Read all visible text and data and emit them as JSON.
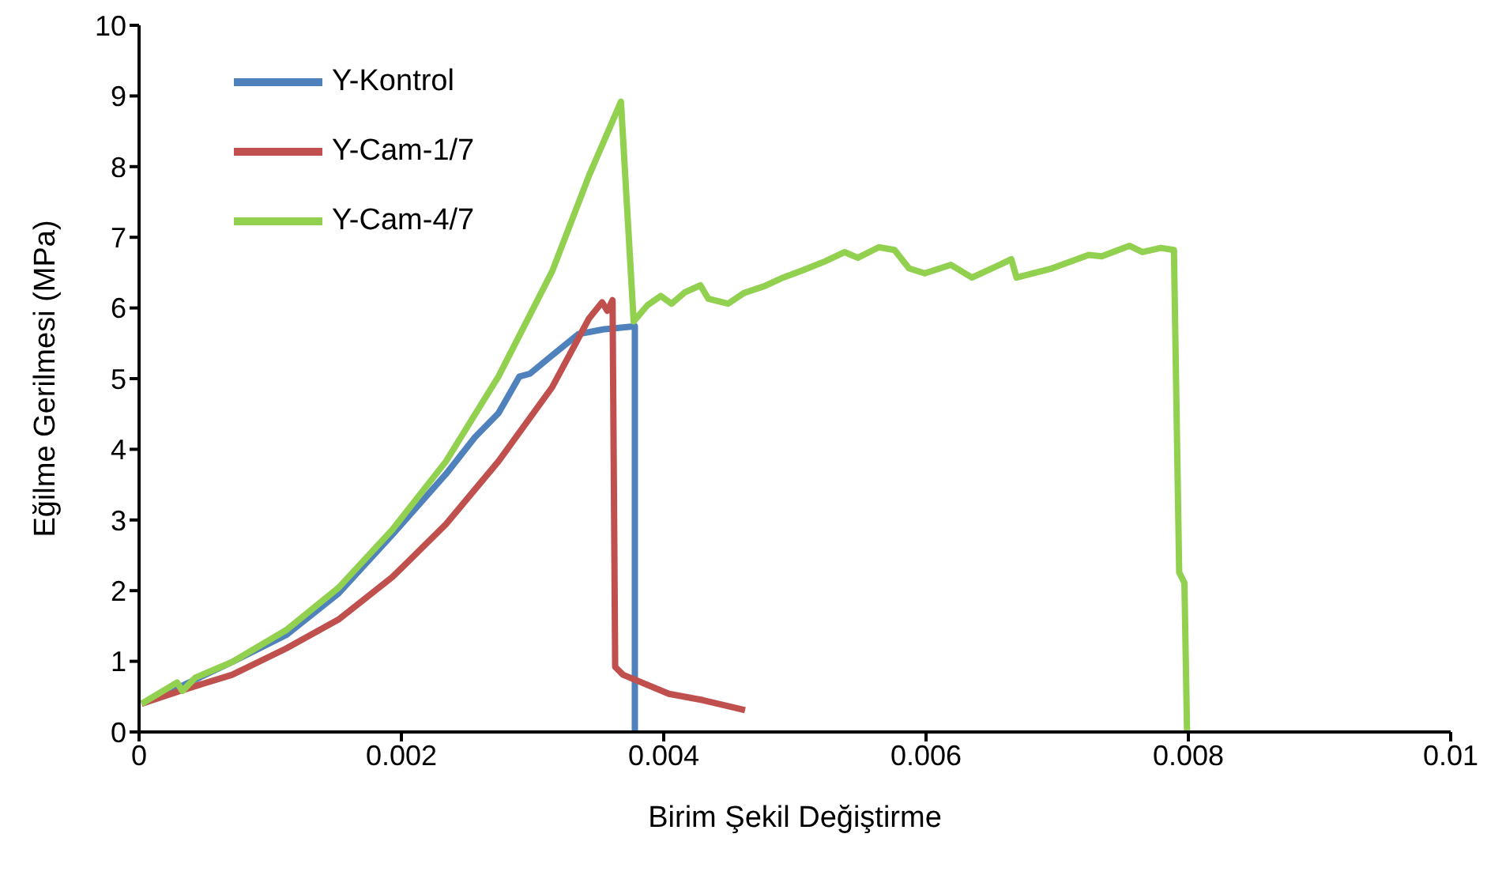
{
  "chart_data": {
    "type": "line",
    "xlabel": "Birim Şekil Değiştirme",
    "ylabel": "Eğilme Gerilmesi (MPa)",
    "xlim": [
      0,
      0.01
    ],
    "xticks": [
      0,
      0.002,
      0.004,
      0.006,
      0.008,
      0.01
    ],
    "ylim": [
      0,
      10
    ],
    "yticks": [
      0,
      1,
      2,
      3,
      4,
      5,
      6,
      7,
      8,
      9,
      10
    ],
    "grid": false,
    "legend": "top left",
    "marker": "none",
    "line_style": "solid",
    "series": [
      {
        "name": "Y-Kontrol",
        "color": "#4f81bd",
        "x": [
          2e-05,
          0.00029,
          0.00071,
          0.00112,
          0.00152,
          0.00193,
          0.00234,
          0.00256,
          0.00274,
          0.0029,
          0.00298,
          0.00315,
          0.00335,
          0.00355,
          0.00378,
          0.00378
        ],
        "values": [
          0.4,
          0.62,
          0.99,
          1.37,
          1.96,
          2.79,
          3.65,
          4.17,
          4.51,
          5.03,
          5.07,
          5.33,
          5.63,
          5.7,
          5.74,
          0
        ]
      },
      {
        "name": "Y-Cam-1/7",
        "color": "#c0504d",
        "x": [
          2e-05,
          0.00031,
          0.00071,
          0.00112,
          0.00152,
          0.00193,
          0.00234,
          0.00274,
          0.00315,
          0.00343,
          0.00353,
          0.00357,
          0.00361,
          0.00363,
          0.00369,
          0.00404,
          0.0043,
          0.00462
        ],
        "values": [
          0.4,
          0.58,
          0.81,
          1.18,
          1.59,
          2.19,
          2.94,
          3.83,
          4.88,
          5.85,
          6.08,
          5.96,
          6.11,
          0.92,
          0.81,
          0.54,
          0.45,
          0.31
        ]
      },
      {
        "name": "Y-Cam-4/7",
        "color": "#92d050",
        "x": [
          2e-05,
          0.00029,
          0.00033,
          0.00043,
          0.00071,
          0.00112,
          0.00152,
          0.00193,
          0.00234,
          0.00274,
          0.00315,
          0.00343,
          0.003674,
          0.003771,
          0.003877,
          0.003978,
          0.00406,
          0.00416,
          0.00428,
          0.00434,
          0.00449,
          0.00461,
          0.00477,
          0.00491,
          0.00507,
          0.00523,
          0.00538,
          0.00548,
          0.00564,
          0.00576,
          0.00587,
          0.00599,
          0.00619,
          0.00635,
          0.00655,
          0.00665,
          0.00669,
          0.00696,
          0.00724,
          0.00734,
          0.00755,
          0.00765,
          0.00779,
          0.00789,
          0.00793,
          0.00797,
          0.00799
        ],
        "values": [
          0.4,
          0.7,
          0.58,
          0.77,
          0.99,
          1.44,
          2.04,
          2.86,
          3.83,
          5.03,
          6.52,
          7.87,
          8.92,
          5.81,
          6.04,
          6.17,
          6.06,
          6.22,
          6.32,
          6.13,
          6.06,
          6.21,
          6.31,
          6.43,
          6.54,
          6.66,
          6.79,
          6.71,
          6.86,
          6.82,
          6.56,
          6.49,
          6.61,
          6.43,
          6.6,
          6.69,
          6.43,
          6.56,
          6.75,
          6.73,
          6.88,
          6.79,
          6.85,
          6.82,
          2.26,
          2.11,
          0
        ]
      }
    ]
  }
}
